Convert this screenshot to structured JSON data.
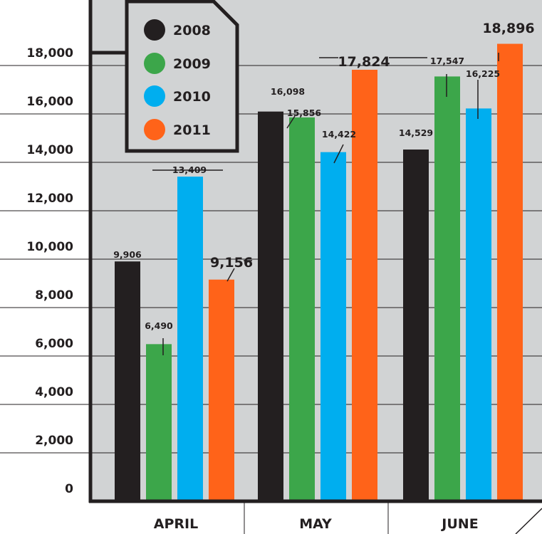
{
  "chart_data": {
    "type": "bar",
    "title": "",
    "xlabel": "",
    "ylabel": "",
    "categories": [
      "APRIL",
      "MAY",
      "JUNE"
    ],
    "ylim": [
      0,
      19500
    ],
    "yticks": [
      0,
      2000,
      4000,
      6000,
      8000,
      10000,
      12000,
      14000,
      16000,
      18000
    ],
    "ytick_labels": [
      "0",
      "2,000",
      "4,000",
      "6,000",
      "8,000",
      "10,000",
      "12,000",
      "14,000",
      "16,000",
      "18,000"
    ],
    "grid": true,
    "legend_position": "top-left",
    "series": [
      {
        "name": "2008",
        "color": "#231f20",
        "values": [
          9906,
          16098,
          14529
        ],
        "labels": [
          "9,906",
          "16,098",
          "14,529"
        ]
      },
      {
        "name": "2009",
        "color": "#3ca64a",
        "values": [
          6490,
          15856,
          17547
        ],
        "labels": [
          "6,490",
          "15,856",
          "17,547"
        ]
      },
      {
        "name": "2010",
        "color": "#00aeef",
        "values": [
          13409,
          14422,
          16225
        ],
        "labels": [
          "13,409",
          "14,422",
          "16,225"
        ]
      },
      {
        "name": "2011",
        "color": "#ff6319",
        "values": [
          9156,
          17824,
          18896
        ],
        "labels": [
          "9,156",
          "17,824",
          "18,896"
        ]
      }
    ],
    "colors": {
      "plot_background": "#d1d3d4",
      "axis": "#231f20"
    }
  }
}
